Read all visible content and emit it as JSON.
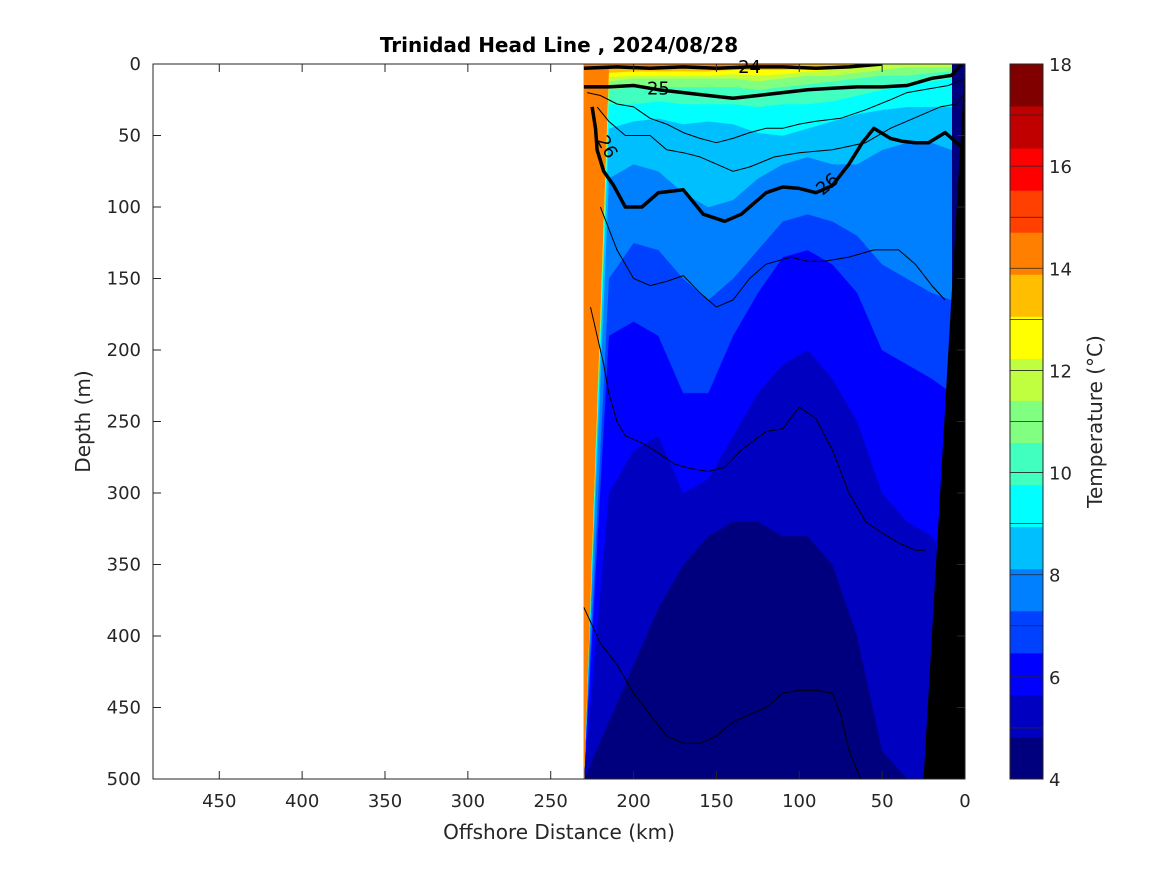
{
  "chart_data": {
    "type": "heatmap",
    "title": "Trinidad Head Line , 2024/08/28",
    "xlabel": "Offshore Distance (km)",
    "ylabel": "Depth (m)",
    "colorbar_label": "Temperature (°C)",
    "xlim": [
      490,
      0
    ],
    "ylim": [
      0,
      500
    ],
    "x_reversed": true,
    "y_reversed": true,
    "x_ticks": [
      450,
      400,
      350,
      300,
      250,
      200,
      150,
      100,
      50,
      0
    ],
    "y_ticks": [
      0,
      50,
      100,
      150,
      200,
      250,
      300,
      350,
      400,
      450,
      500
    ],
    "colorbar": {
      "range": [
        4,
        18
      ],
      "step": 1,
      "ticks": [
        4,
        6,
        8,
        10,
        12,
        14,
        16,
        18
      ],
      "colors": [
        "#00007f",
        "#0000c0",
        "#0000ff",
        "#0040ff",
        "#0080ff",
        "#00bfff",
        "#00ffff",
        "#40ffbf",
        "#80ff80",
        "#bfff40",
        "#ffff00",
        "#ffbf00",
        "#ff8000",
        "#ff4000",
        "#ff0000",
        "#c00000",
        "#800000"
      ]
    },
    "data_extent_km": [
      230,
      0
    ],
    "stations_km": [
      230,
      215,
      200,
      185,
      170,
      155,
      140,
      125,
      110,
      95,
      80,
      65,
      50,
      35,
      20,
      8
    ],
    "temperature_bands": [
      {
        "temp_min": 5,
        "depth_m": [
          500,
          460,
          420,
          380,
          350,
          330,
          320,
          320,
          330,
          330,
          350,
          400,
          480,
          500,
          500,
          500
        ]
      },
      {
        "temp_min": 6,
        "depth_m": [
          500,
          300,
          270,
          260,
          300,
          290,
          260,
          230,
          210,
          200,
          220,
          250,
          300,
          320,
          330,
          350
        ]
      },
      {
        "temp_min": 7,
        "depth_m": [
          500,
          190,
          180,
          190,
          230,
          230,
          190,
          160,
          135,
          130,
          140,
          160,
          200,
          210,
          220,
          230
        ]
      },
      {
        "temp_min": 8,
        "depth_m": [
          500,
          150,
          125,
          130,
          150,
          165,
          150,
          130,
          110,
          105,
          110,
          120,
          140,
          150,
          160,
          165
        ]
      },
      {
        "temp_min": 9,
        "depth_m": [
          500,
          80,
          70,
          75,
          90,
          100,
          95,
          80,
          70,
          65,
          70,
          70,
          60,
          55,
          55,
          60
        ]
      },
      {
        "temp_min": 10,
        "depth_m": [
          500,
          45,
          40,
          38,
          42,
          40,
          42,
          48,
          50,
          45,
          40,
          35,
          32,
          30,
          30,
          30
        ]
      },
      {
        "temp_min": 11,
        "depth_m": [
          500,
          28,
          28,
          26,
          28,
          28,
          28,
          30,
          28,
          28,
          26,
          22,
          18,
          15,
          12,
          10
        ]
      },
      {
        "temp_min": 12,
        "depth_m": [
          500,
          18,
          16,
          16,
          16,
          16,
          16,
          18,
          16,
          14,
          12,
          10,
          8,
          8,
          6,
          5
        ]
      },
      {
        "temp_min": 13,
        "depth_m": [
          500,
          12,
          10,
          10,
          10,
          10,
          10,
          12,
          10,
          8,
          8,
          6,
          4,
          2,
          2,
          2
        ]
      },
      {
        "temp_min": 14,
        "depth_m": [
          500,
          9,
          8,
          8,
          8,
          8,
          7,
          8,
          7,
          5,
          4,
          2,
          0,
          0,
          0,
          0
        ]
      },
      {
        "temp_min": 15,
        "depth_m": [
          500,
          6,
          5,
          5,
          5,
          5,
          4,
          4,
          4,
          3,
          2,
          0,
          0,
          0,
          0,
          0
        ]
      },
      {
        "temp_min": 16,
        "depth_m": [
          500,
          3,
          2,
          2,
          2,
          2,
          1,
          1,
          1,
          0,
          0,
          0,
          0,
          0,
          0,
          0
        ]
      }
    ],
    "density_contours": [
      {
        "sigma": 24,
        "label": "24",
        "bold": true,
        "x_km": [
          230,
          210,
          190,
          170,
          150,
          130,
          110,
          90,
          70,
          50
        ],
        "depth_m": [
          3,
          2,
          3,
          2,
          3,
          2,
          2,
          3,
          2,
          0
        ]
      },
      {
        "sigma": 25,
        "label": "25",
        "bold": true,
        "x_km": [
          230,
          215,
          200,
          185,
          170,
          155,
          140,
          125,
          110,
          95,
          80,
          65,
          50,
          35,
          20,
          8,
          2
        ],
        "depth_m": [
          16,
          16,
          15,
          18,
          20,
          22,
          24,
          22,
          20,
          18,
          17,
          16,
          16,
          15,
          10,
          8,
          0
        ]
      },
      {
        "sigma": 26,
        "label": "26",
        "bold": true,
        "x_km": [
          225,
          223,
          222,
          218,
          212,
          205,
          195,
          185,
          170,
          158,
          145,
          135,
          120,
          110,
          100,
          90,
          80,
          70,
          62,
          55,
          45,
          38,
          30,
          22,
          12,
          5,
          0
        ],
        "depth_m": [
          30,
          45,
          60,
          75,
          85,
          100,
          100,
          90,
          88,
          105,
          110,
          105,
          90,
          86,
          87,
          90,
          85,
          70,
          55,
          45,
          52,
          54,
          55,
          55,
          48,
          55,
          60
        ]
      },
      {
        "sigma": 26.2,
        "label": "",
        "bold": false,
        "x_km": [
          222,
          215,
          205,
          190,
          180,
          170,
          160,
          150,
          140,
          130,
          115,
          100,
          80,
          60,
          45,
          35,
          25,
          15,
          5,
          0
        ],
        "depth_m": [
          30,
          40,
          50,
          50,
          60,
          62,
          65,
          70,
          75,
          72,
          65,
          62,
          60,
          55,
          45,
          40,
          35,
          30,
          28,
          20
        ]
      },
      {
        "sigma": 26.4,
        "label": "",
        "bold": false,
        "x_km": [
          228,
          220,
          210,
          200,
          190,
          180,
          170,
          160,
          150,
          140,
          130,
          120,
          110,
          100,
          90,
          75,
          60,
          45,
          35,
          25,
          10,
          0
        ],
        "depth_m": [
          20,
          22,
          28,
          30,
          38,
          42,
          48,
          52,
          55,
          52,
          48,
          45,
          45,
          42,
          40,
          38,
          32,
          25,
          20,
          18,
          15,
          10
        ]
      },
      {
        "sigma": 26.6,
        "label": "",
        "bold": false,
        "x_km": [
          220,
          210,
          200,
          190,
          180,
          170,
          160,
          150,
          140,
          130,
          120,
          105,
          95,
          85,
          70,
          55,
          40,
          30,
          20,
          12
        ],
        "depth_m": [
          100,
          130,
          150,
          155,
          152,
          148,
          160,
          170,
          165,
          150,
          140,
          135,
          138,
          138,
          135,
          130,
          130,
          140,
          155,
          165
        ]
      },
      {
        "sigma": 26.8,
        "label": "",
        "bold": false,
        "x_km": [
          226,
          222,
          218,
          215,
          210,
          205,
          195,
          185,
          175,
          165,
          155,
          145,
          135,
          120,
          110,
          100,
          90,
          80,
          70,
          60,
          50,
          40,
          30,
          24
        ],
        "depth_m": [
          170,
          190,
          210,
          230,
          250,
          260,
          265,
          272,
          280,
          283,
          285,
          282,
          270,
          257,
          255,
          240,
          248,
          270,
          300,
          320,
          328,
          335,
          340,
          340
        ]
      },
      {
        "sigma": 27.0,
        "label": "",
        "bold": false,
        "x_km": [
          230,
          220,
          210,
          200,
          190,
          180,
          170,
          160,
          150,
          140,
          130,
          120,
          110,
          100,
          90,
          80,
          75,
          70,
          63
        ],
        "depth_m": [
          380,
          405,
          420,
          440,
          455,
          470,
          475,
          475,
          470,
          460,
          455,
          450,
          440,
          438,
          438,
          440,
          455,
          480,
          500
        ]
      }
    ],
    "bottom_km": [
      0,
      25,
      8,
      0
    ],
    "bottom_depth_m": [
      0,
      500,
      500,
      500
    ],
    "bottom_color": "#000000"
  }
}
